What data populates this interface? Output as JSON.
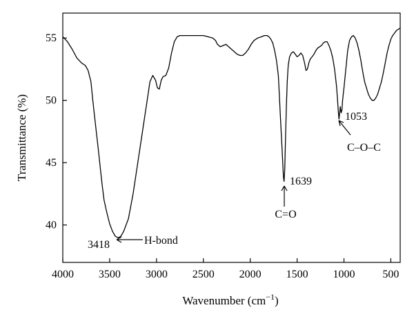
{
  "chart_data": {
    "type": "line",
    "title": "",
    "xlabel": "Wavenumber (cm",
    "xlabel_sup": "−1",
    "xlabel_close": ")",
    "ylabel": "Transmittance (%)",
    "xlim": [
      4000,
      400
    ],
    "ylim": [
      37,
      57
    ],
    "x_reversed": true,
    "x_ticks": [
      4000,
      3500,
      3000,
      2500,
      2000,
      1500,
      1000,
      500
    ],
    "y_ticks": [
      40,
      45,
      50,
      55
    ],
    "grid": false,
    "line_color": "#000000",
    "series": [
      {
        "points": [
          [
            4000,
            55.1
          ],
          [
            3950,
            54.7
          ],
          [
            3900,
            54.1
          ],
          [
            3850,
            53.4
          ],
          [
            3800,
            53.0
          ],
          [
            3760,
            52.8
          ],
          [
            3730,
            52.4
          ],
          [
            3700,
            51.5
          ],
          [
            3680,
            50.0
          ],
          [
            3650,
            48.0
          ],
          [
            3620,
            46.0
          ],
          [
            3600,
            44.6
          ],
          [
            3580,
            43.2
          ],
          [
            3560,
            42.0
          ],
          [
            3530,
            41.0
          ],
          [
            3500,
            40.1
          ],
          [
            3470,
            39.5
          ],
          [
            3440,
            39.1
          ],
          [
            3418,
            39.0
          ],
          [
            3400,
            39.0
          ],
          [
            3380,
            39.1
          ],
          [
            3350,
            39.5
          ],
          [
            3300,
            40.5
          ],
          [
            3250,
            42.5
          ],
          [
            3200,
            45.0
          ],
          [
            3150,
            47.5
          ],
          [
            3100,
            50.0
          ],
          [
            3070,
            51.5
          ],
          [
            3040,
            52.0
          ],
          [
            3010,
            51.6
          ],
          [
            2990,
            51.0
          ],
          [
            2970,
            50.9
          ],
          [
            2950,
            51.6
          ],
          [
            2930,
            51.9
          ],
          [
            2900,
            52.0
          ],
          [
            2870,
            52.6
          ],
          [
            2840,
            53.8
          ],
          [
            2810,
            54.7
          ],
          [
            2780,
            55.1
          ],
          [
            2750,
            55.2
          ],
          [
            2700,
            55.2
          ],
          [
            2650,
            55.2
          ],
          [
            2600,
            55.2
          ],
          [
            2550,
            55.2
          ],
          [
            2500,
            55.2
          ],
          [
            2450,
            55.1
          ],
          [
            2400,
            55.0
          ],
          [
            2370,
            54.8
          ],
          [
            2350,
            54.5
          ],
          [
            2320,
            54.3
          ],
          [
            2290,
            54.4
          ],
          [
            2260,
            54.5
          ],
          [
            2230,
            54.3
          ],
          [
            2200,
            54.1
          ],
          [
            2170,
            53.9
          ],
          [
            2140,
            53.7
          ],
          [
            2110,
            53.6
          ],
          [
            2080,
            53.6
          ],
          [
            2050,
            53.8
          ],
          [
            2020,
            54.1
          ],
          [
            1990,
            54.5
          ],
          [
            1960,
            54.8
          ],
          [
            1920,
            55.0
          ],
          [
            1880,
            55.1
          ],
          [
            1850,
            55.2
          ],
          [
            1820,
            55.2
          ],
          [
            1800,
            55.1
          ],
          [
            1780,
            54.9
          ],
          [
            1760,
            54.6
          ],
          [
            1740,
            54.0
          ],
          [
            1720,
            53.2
          ],
          [
            1700,
            52.0
          ],
          [
            1690,
            50.5
          ],
          [
            1680,
            49.0
          ],
          [
            1670,
            47.5
          ],
          [
            1660,
            46.0
          ],
          [
            1650,
            44.5
          ],
          [
            1645,
            43.8
          ],
          [
            1639,
            43.5
          ],
          [
            1632,
            44.5
          ],
          [
            1625,
            46.5
          ],
          [
            1615,
            49.5
          ],
          [
            1605,
            51.5
          ],
          [
            1595,
            52.8
          ],
          [
            1580,
            53.5
          ],
          [
            1560,
            53.8
          ],
          [
            1540,
            53.9
          ],
          [
            1520,
            53.7
          ],
          [
            1500,
            53.5
          ],
          [
            1480,
            53.6
          ],
          [
            1460,
            53.8
          ],
          [
            1440,
            53.6
          ],
          [
            1420,
            53.0
          ],
          [
            1405,
            52.4
          ],
          [
            1390,
            52.5
          ],
          [
            1375,
            53.0
          ],
          [
            1360,
            53.3
          ],
          [
            1340,
            53.5
          ],
          [
            1320,
            53.7
          ],
          [
            1300,
            54.0
          ],
          [
            1280,
            54.2
          ],
          [
            1260,
            54.3
          ],
          [
            1240,
            54.4
          ],
          [
            1220,
            54.6
          ],
          [
            1200,
            54.7
          ],
          [
            1180,
            54.7
          ],
          [
            1160,
            54.4
          ],
          [
            1140,
            54.0
          ],
          [
            1120,
            53.4
          ],
          [
            1100,
            52.5
          ],
          [
            1080,
            51.2
          ],
          [
            1070,
            50.2
          ],
          [
            1060,
            49.1
          ],
          [
            1053,
            48.5
          ],
          [
            1046,
            49.0
          ],
          [
            1040,
            49.5
          ],
          [
            1030,
            49.0
          ],
          [
            1022,
            49.2
          ],
          [
            1015,
            50.0
          ],
          [
            1000,
            51.0
          ],
          [
            980,
            52.5
          ],
          [
            960,
            54.0
          ],
          [
            940,
            54.8
          ],
          [
            920,
            55.1
          ],
          [
            900,
            55.2
          ],
          [
            880,
            55.0
          ],
          [
            860,
            54.6
          ],
          [
            840,
            54.0
          ],
          [
            820,
            53.2
          ],
          [
            800,
            52.3
          ],
          [
            780,
            51.5
          ],
          [
            760,
            51.0
          ],
          [
            740,
            50.5
          ],
          [
            720,
            50.2
          ],
          [
            700,
            50.0
          ],
          [
            680,
            50.0
          ],
          [
            660,
            50.2
          ],
          [
            640,
            50.5
          ],
          [
            620,
            51.0
          ],
          [
            600,
            51.5
          ],
          [
            580,
            52.2
          ],
          [
            560,
            53.0
          ],
          [
            540,
            53.8
          ],
          [
            520,
            54.4
          ],
          [
            500,
            54.9
          ],
          [
            480,
            55.2
          ],
          [
            460,
            55.4
          ],
          [
            440,
            55.6
          ],
          [
            420,
            55.7
          ],
          [
            400,
            55.8
          ]
        ]
      }
    ],
    "annotations": [
      {
        "peak": 3418,
        "value_label": "3418",
        "band_label": "H-bond"
      },
      {
        "peak": 1639,
        "value_label": "1639",
        "band_label": "C=O"
      },
      {
        "peak": 1053,
        "value_label": "1053",
        "band_label": "C–O–C"
      }
    ]
  }
}
